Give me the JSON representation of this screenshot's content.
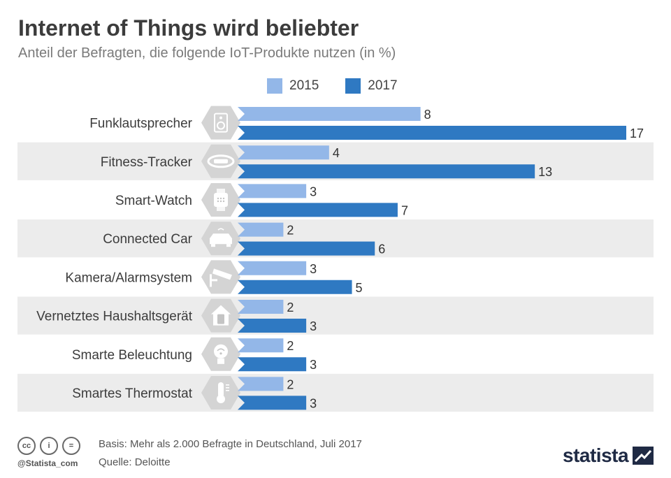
{
  "title": "Internet of Things wird beliebter",
  "subtitle": "Anteil der Befragten, die folgende IoT-Produkte nutzen (in %)",
  "colors": {
    "s2015": "#93b7e8",
    "s2017": "#2f79c2",
    "stripe": "#ececec",
    "hex": "#d4d4d4"
  },
  "chart_data": {
    "type": "bar",
    "orientation": "horizontal",
    "title": "Internet of Things wird beliebter",
    "subtitle": "Anteil der Befragten, die folgende IoT-Produkte nutzen (in %)",
    "categories": [
      "Funklautsprecher",
      "Fitness-Tracker",
      "Smart-Watch",
      "Connected Car",
      "Kamera/Alarmsystem",
      "Vernetztes Haushaltsgerät",
      "Smarte Beleuchtung",
      "Smartes Thermostat"
    ],
    "icons": [
      "speaker-icon",
      "fitness-tracker-icon",
      "smartwatch-icon",
      "car-icon",
      "camera-icon",
      "smart-home-icon",
      "bulb-icon",
      "thermometer-icon"
    ],
    "series": [
      {
        "name": "2015",
        "values": [
          8,
          4,
          3,
          2,
          3,
          2,
          2,
          2
        ]
      },
      {
        "name": "2017",
        "values": [
          17,
          13,
          7,
          6,
          5,
          3,
          3,
          3
        ]
      }
    ],
    "xlim": [
      0,
      17
    ],
    "legend": "top",
    "grid": false
  },
  "legend": {
    "s2015": "2015",
    "s2017": "2017"
  },
  "footer": {
    "cc": [
      "cc",
      "i",
      "="
    ],
    "handle": "@Statista_com",
    "basis": "Basis: Mehr als 2.000 Befragte in Deutschland, Juli 2017",
    "source": "Quelle: Deloitte",
    "brand": "statista"
  }
}
